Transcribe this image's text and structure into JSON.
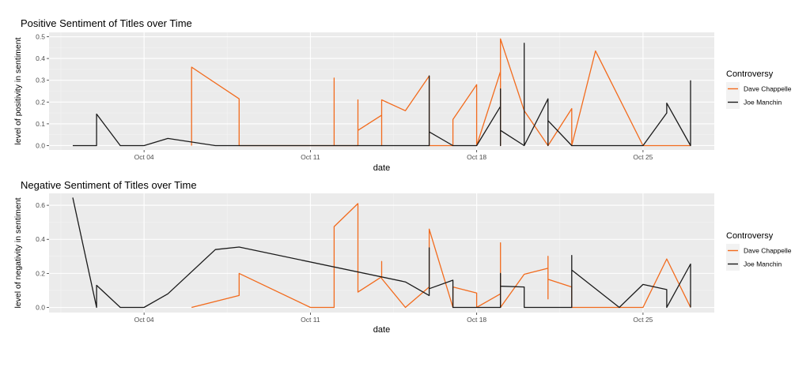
{
  "chart_data": [
    {
      "type": "line",
      "title": "Positive Sentiment of Titles over Time",
      "xlabel": "date",
      "ylabel": "level of positivity in sentiment",
      "x_type": "date",
      "xlim": [
        "2021-09-30",
        "2021-10-28"
      ],
      "xticks": [
        {
          "value": "2021-10-04",
          "label": "Oct 04"
        },
        {
          "value": "2021-10-11",
          "label": "Oct 11"
        },
        {
          "value": "2021-10-18",
          "label": "Oct 18"
        },
        {
          "value": "2021-10-25",
          "label": "Oct 25"
        }
      ],
      "ylim": [
        -0.02,
        0.52
      ],
      "yticks": [
        "0.0",
        "0.1",
        "0.2",
        "0.3",
        "0.4",
        "0.5"
      ],
      "grid": true,
      "legend": {
        "title": "Controversy",
        "placement": "right"
      },
      "series": [
        {
          "name": "Dave Chappelle",
          "color": "#f26b1d",
          "points": [
            [
              "2021-10-06",
              0.0
            ],
            [
              "2021-10-06",
              0.36
            ],
            [
              "2021-10-08",
              0.215
            ],
            [
              "2021-10-08",
              0.0
            ],
            [
              "2021-10-11",
              0.0
            ],
            [
              "2021-10-12",
              0.0
            ],
            [
              "2021-10-12",
              0.31
            ],
            [
              "2021-10-12",
              0.0
            ],
            [
              "2021-10-13",
              0.0
            ],
            [
              "2021-10-13",
              0.21
            ],
            [
              "2021-10-13",
              0.07
            ],
            [
              "2021-10-14",
              0.14
            ],
            [
              "2021-10-14",
              0.0
            ],
            [
              "2021-10-14",
              0.21
            ],
            [
              "2021-10-15",
              0.16
            ],
            [
              "2021-10-16",
              0.32
            ],
            [
              "2021-10-16",
              0.0
            ],
            [
              "2021-10-17",
              0.0
            ],
            [
              "2021-10-17",
              0.12
            ],
            [
              "2021-10-18",
              0.28
            ],
            [
              "2021-10-18",
              0.0
            ],
            [
              "2021-10-19",
              0.34
            ],
            [
              "2021-10-19",
              0.0
            ],
            [
              "2021-10-19",
              0.49
            ],
            [
              "2021-10-20",
              0.16
            ],
            [
              "2021-10-21",
              0.0
            ],
            [
              "2021-10-22",
              0.17
            ],
            [
              "2021-10-22",
              0.0
            ],
            [
              "2021-10-23",
              0.435
            ],
            [
              "2021-10-25",
              0.0
            ],
            [
              "2021-10-27",
              0.0
            ]
          ]
        },
        {
          "name": "Joe Manchin",
          "color": "#1a1a1a",
          "points": [
            [
              "2021-10-01",
              0.0
            ],
            [
              "2021-10-02",
              0.0
            ],
            [
              "2021-10-02",
              0.145
            ],
            [
              "2021-10-03",
              0.0
            ],
            [
              "2021-10-04",
              0.0
            ],
            [
              "2021-10-05",
              0.033
            ],
            [
              "2021-10-07",
              0.0
            ],
            [
              "2021-10-16",
              0.0
            ],
            [
              "2021-10-16",
              0.32
            ],
            [
              "2021-10-16",
              0.063
            ],
            [
              "2021-10-17",
              0.0
            ],
            [
              "2021-10-18",
              0.0
            ],
            [
              "2021-10-19",
              0.18
            ],
            [
              "2021-10-19",
              0.0
            ],
            [
              "2021-10-19",
              0.26
            ],
            [
              "2021-10-19",
              0.07
            ],
            [
              "2021-10-20",
              0.0
            ],
            [
              "2021-10-20",
              0.47
            ],
            [
              "2021-10-20",
              0.0
            ],
            [
              "2021-10-21",
              0.215
            ],
            [
              "2021-10-21",
              0.0
            ],
            [
              "2021-10-21",
              0.115
            ],
            [
              "2021-10-22",
              0.0
            ],
            [
              "2021-10-25",
              0.0
            ],
            [
              "2021-10-26",
              0.15
            ],
            [
              "2021-10-26",
              0.195
            ],
            [
              "2021-10-27",
              0.0
            ],
            [
              "2021-10-27",
              0.3
            ]
          ]
        }
      ]
    },
    {
      "type": "line",
      "title": "Negative Sentiment of Titles over Time",
      "xlabel": "date",
      "ylabel": "level of negativity in sentiment",
      "x_type": "date",
      "xlim": [
        "2021-09-30",
        "2021-10-28"
      ],
      "xticks": [
        {
          "value": "2021-10-04",
          "label": "Oct 04"
        },
        {
          "value": "2021-10-11",
          "label": "Oct 11"
        },
        {
          "value": "2021-10-18",
          "label": "Oct 18"
        },
        {
          "value": "2021-10-25",
          "label": "Oct 25"
        }
      ],
      "ylim": [
        -0.03,
        0.67
      ],
      "yticks": [
        "0.0",
        "0.2",
        "0.4",
        "0.6"
      ],
      "grid": true,
      "legend": {
        "title": "Controversy",
        "placement": "right"
      },
      "series": [
        {
          "name": "Dave Chappelle",
          "color": "#f26b1d",
          "points": [
            [
              "2021-10-06",
              0.0
            ],
            [
              "2021-10-08",
              0.07
            ],
            [
              "2021-10-08",
              0.2
            ],
            [
              "2021-10-11",
              0.0
            ],
            [
              "2021-10-12",
              0.0
            ],
            [
              "2021-10-12",
              0.475
            ],
            [
              "2021-10-13",
              0.61
            ],
            [
              "2021-10-13",
              0.09
            ],
            [
              "2021-10-14",
              0.18
            ],
            [
              "2021-10-14",
              0.27
            ],
            [
              "2021-10-14",
              0.17
            ],
            [
              "2021-10-15",
              0.0
            ],
            [
              "2021-10-16",
              0.12
            ],
            [
              "2021-10-16",
              0.46
            ],
            [
              "2021-10-17",
              0.0
            ],
            [
              "2021-10-17",
              0.12
            ],
            [
              "2021-10-18",
              0.085
            ],
            [
              "2021-10-18",
              0.0
            ],
            [
              "2021-10-19",
              0.08
            ],
            [
              "2021-10-19",
              0.38
            ],
            [
              "2021-10-19",
              0.0
            ],
            [
              "2021-10-20",
              0.195
            ],
            [
              "2021-10-21",
              0.23
            ],
            [
              "2021-10-21",
              0.05
            ],
            [
              "2021-10-21",
              0.3
            ],
            [
              "2021-10-21",
              0.165
            ],
            [
              "2021-10-22",
              0.12
            ],
            [
              "2021-10-22",
              0.0
            ],
            [
              "2021-10-25",
              0.0
            ],
            [
              "2021-10-26",
              0.285
            ],
            [
              "2021-10-27",
              0.0
            ]
          ]
        },
        {
          "name": "Joe Manchin",
          "color": "#1a1a1a",
          "points": [
            [
              "2021-10-01",
              0.645
            ],
            [
              "2021-10-02",
              0.0
            ],
            [
              "2021-10-02",
              0.13
            ],
            [
              "2021-10-03",
              0.0
            ],
            [
              "2021-10-04",
              0.0
            ],
            [
              "2021-10-05",
              0.08
            ],
            [
              "2021-10-07",
              0.34
            ],
            [
              "2021-10-08",
              0.355
            ],
            [
              "2021-10-15",
              0.15
            ],
            [
              "2021-10-16",
              0.07
            ],
            [
              "2021-10-16",
              0.35
            ],
            [
              "2021-10-16",
              0.11
            ],
            [
              "2021-10-17",
              0.16
            ],
            [
              "2021-10-17",
              0.0
            ],
            [
              "2021-10-19",
              0.0
            ],
            [
              "2021-10-19",
              0.2
            ],
            [
              "2021-10-19",
              0.125
            ],
            [
              "2021-10-20",
              0.12
            ],
            [
              "2021-10-20",
              0.0
            ],
            [
              "2021-10-21",
              0.0
            ],
            [
              "2021-10-22",
              0.0
            ],
            [
              "2021-10-22",
              0.305
            ],
            [
              "2021-10-22",
              0.22
            ],
            [
              "2021-10-24",
              0.0
            ],
            [
              "2021-10-25",
              0.135
            ],
            [
              "2021-10-26",
              0.105
            ],
            [
              "2021-10-26",
              0.0
            ],
            [
              "2021-10-27",
              0.255
            ],
            [
              "2021-10-27",
              0.0
            ]
          ]
        }
      ]
    }
  ]
}
